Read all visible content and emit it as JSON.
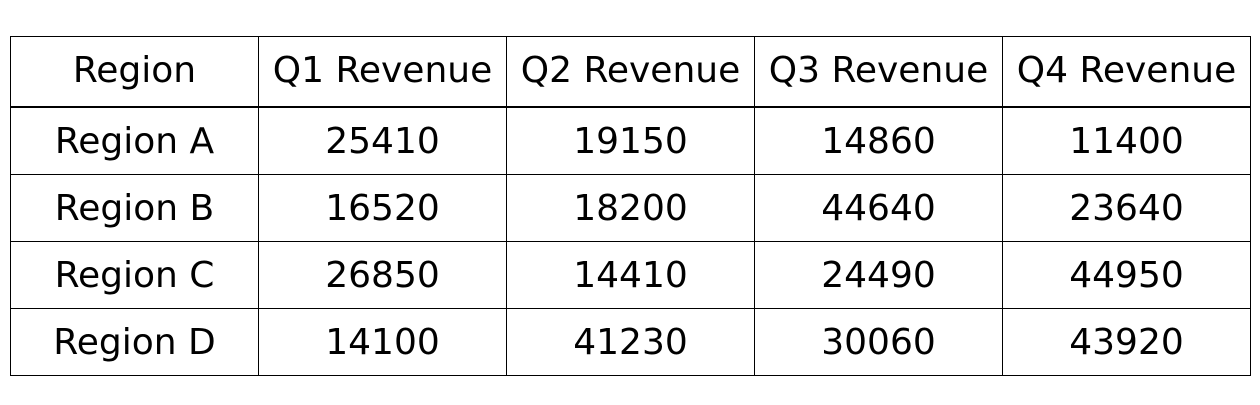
{
  "chart_data": {
    "type": "table",
    "columns": [
      "Region",
      "Q1 Revenue",
      "Q2 Revenue",
      "Q3 Revenue",
      "Q4 Revenue"
    ],
    "rows": [
      [
        "Region A",
        "25410",
        "19150",
        "14860",
        "11400"
      ],
      [
        "Region B",
        "16520",
        "18200",
        "44640",
        "23640"
      ],
      [
        "Region C",
        "26850",
        "14410",
        "24490",
        "44950"
      ],
      [
        "Region D",
        "14100",
        "41230",
        "30060",
        "43920"
      ]
    ]
  }
}
